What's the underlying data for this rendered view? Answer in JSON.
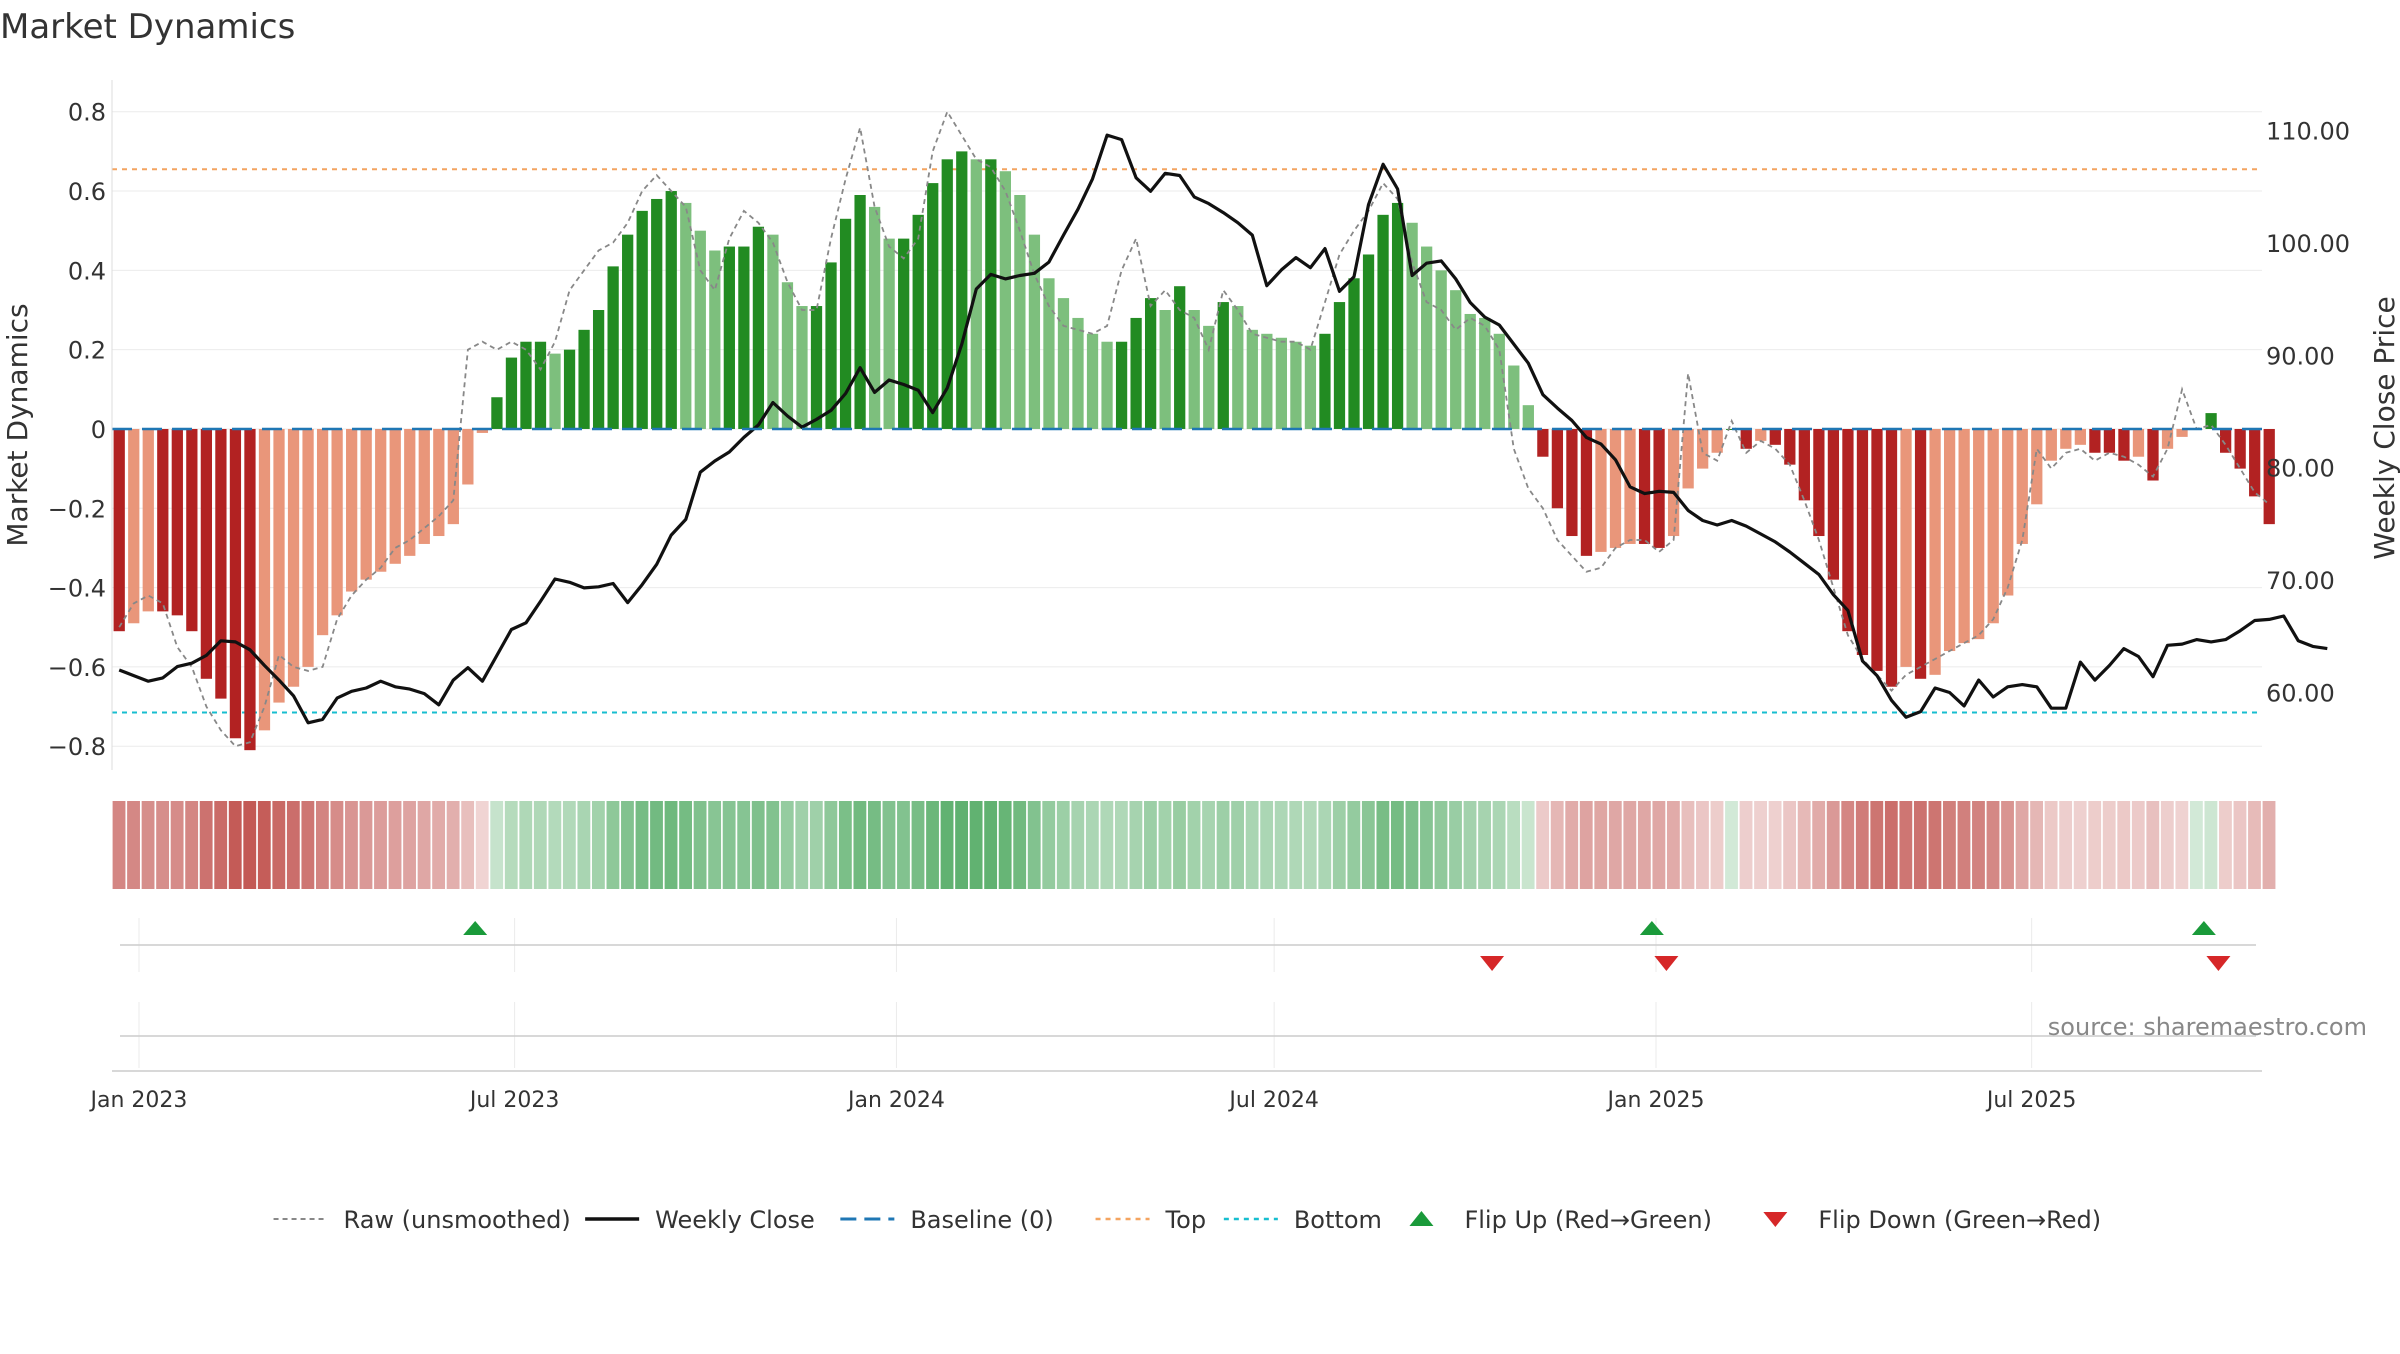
{
  "chart_data": {
    "type": "bar",
    "title": "Market Dynamics",
    "ylabel": "Market Dynamics",
    "y2label": "Weekly Close Price",
    "ylim": [
      -0.86,
      0.88
    ],
    "y2lim": [
      53.1,
      114.5
    ],
    "yticks": [
      "0.8",
      "0.6",
      "0.4",
      "0.2",
      "0",
      "−0.2",
      "−0.4",
      "−0.6",
      "−0.8"
    ],
    "ytick_values": [
      0.8,
      0.6,
      0.4,
      0.2,
      0,
      -0.2,
      -0.4,
      -0.6,
      -0.8
    ],
    "y2ticks": [
      "110.00",
      "100.00",
      "90.00",
      "80.00",
      "70.00",
      "60.00"
    ],
    "y2tick_values": [
      110,
      100,
      90,
      80,
      70,
      60
    ],
    "x_start": "2022-12-19",
    "x_end": "2025-10-20",
    "xticks": [
      {
        "date": "2023-01-01",
        "label": "Jan 2023"
      },
      {
        "date": "2023-07-01",
        "label": "Jul 2023"
      },
      {
        "date": "2024-01-01",
        "label": "Jan 2024"
      },
      {
        "date": "2024-07-01",
        "label": "Jul 2024"
      },
      {
        "date": "2025-01-01",
        "label": "Jan 2025"
      },
      {
        "date": "2025-07-01",
        "label": "Jul 2025"
      }
    ],
    "reference_lines": {
      "baseline": 0,
      "top": 0.655,
      "bottom": -0.715
    },
    "colors": {
      "strong_up": "#228b22",
      "weak_up": "#7dbf7d",
      "strong_down": "#b22222",
      "weak_down": "#e9967a",
      "raw": "#888888",
      "close": "#111111",
      "baseline": "#1f77b4",
      "top": "#f4a460",
      "bottom": "#17becf",
      "flip_up": "#1a9a3a",
      "flip_down": "#d62728"
    },
    "weeks": {
      "start": "2022-12-19",
      "step_days": 7,
      "smoothed": [
        -0.51,
        -0.49,
        -0.46,
        -0.46,
        -0.47,
        -0.51,
        -0.63,
        -0.68,
        -0.78,
        -0.81,
        -0.76,
        -0.69,
        -0.65,
        -0.6,
        -0.52,
        -0.47,
        -0.41,
        -0.38,
        -0.36,
        -0.34,
        -0.32,
        -0.29,
        -0.27,
        -0.24,
        -0.14,
        -0.01,
        0.08,
        0.18,
        0.22,
        0.22,
        0.19,
        0.2,
        0.25,
        0.3,
        0.41,
        0.49,
        0.55,
        0.58,
        0.6,
        0.57,
        0.5,
        0.45,
        0.46,
        0.46,
        0.51,
        0.49,
        0.37,
        0.31,
        0.31,
        0.42,
        0.53,
        0.59,
        0.56,
        0.48,
        0.48,
        0.54,
        0.62,
        0.68,
        0.7,
        0.68,
        0.68,
        0.65,
        0.59,
        0.49,
        0.38,
        0.33,
        0.28,
        0.24,
        0.22,
        0.22,
        0.28,
        0.33,
        0.3,
        0.36,
        0.3,
        0.26,
        0.32,
        0.31,
        0.25,
        0.24,
        0.23,
        0.22,
        0.21,
        0.24,
        0.32,
        0.38,
        0.44,
        0.54,
        0.57,
        0.52,
        0.46,
        0.4,
        0.35,
        0.29,
        0.28,
        0.24,
        0.16,
        0.06,
        -0.07,
        -0.2,
        -0.27,
        -0.32,
        -0.31,
        -0.3,
        -0.29,
        -0.29,
        -0.3,
        -0.27,
        -0.15,
        -0.1,
        -0.06,
        0,
        -0.05,
        -0.03,
        -0.04,
        -0.09,
        -0.18,
        -0.27,
        -0.38,
        -0.51,
        -0.57,
        -0.61,
        -0.65,
        -0.6,
        -0.63,
        -0.62,
        -0.56,
        -0.54,
        -0.53,
        -0.49,
        -0.42,
        -0.29,
        -0.19,
        -0.08,
        -0.05,
        -0.04,
        -0.06,
        -0.06,
        -0.08,
        -0.07,
        -0.13,
        -0.05,
        -0.02,
        0,
        0.04,
        -0.06,
        -0.1,
        -0.17,
        -0.24
      ],
      "close": [
        62,
        61.5,
        61,
        61.3,
        62.3,
        62.6,
        63.3,
        64.6,
        64.5,
        63.8,
        62.4,
        61.1,
        59.7,
        57.3,
        57.6,
        59.5,
        60.1,
        60.4,
        61,
        60.5,
        60.3,
        59.9,
        58.9,
        61.1,
        62.2,
        61,
        63.3,
        65.6,
        66.2,
        68.1,
        70.1,
        69.8,
        69.3,
        69.4,
        69.7,
        68,
        69.6,
        71.4,
        74,
        75.4,
        79.6,
        80.6,
        81.4,
        82.7,
        83.8,
        85.8,
        84.6,
        83.6,
        84.3,
        85.1,
        86.6,
        88.9,
        86.7,
        87.8,
        87.4,
        86.9,
        84.9,
        87.1,
        91,
        95.9,
        97.2,
        96.8,
        97.1,
        97.3,
        98.3,
        100.7,
        103,
        105.7,
        109.6,
        109.2,
        105.8,
        104.6,
        106.2,
        106,
        104.1,
        103.5,
        102.7,
        101.8,
        100.7,
        96.2,
        97.6,
        98.7,
        97.8,
        99.5,
        95.7,
        97,
        103.4,
        107,
        104.8,
        97.1,
        98.2,
        98.4,
        96.8,
        94.7,
        93.4,
        92.7,
        91,
        89.3,
        86.5,
        85.3,
        84.2,
        82.7,
        82.1,
        80.7,
        78.3,
        77.7,
        77.9,
        77.8,
        76.2,
        75.3,
        74.9,
        75.3,
        74.8,
        74.1,
        73.4,
        72.5,
        71.5,
        70.5,
        68.7,
        67.3,
        62.8,
        61.5,
        59.3,
        57.8,
        58.3,
        60.4,
        60,
        58.8,
        61.1,
        59.6,
        60.5,
        60.7,
        60.5,
        58.6,
        58.6,
        62.7,
        61.1,
        62.4,
        63.9,
        63.2,
        61.4,
        64.2,
        64.3,
        64.7,
        64.5,
        64.7,
        65.5,
        66.4,
        66.5,
        66.8,
        64.6,
        64.1,
        63.9
      ],
      "raw": [
        -0.5,
        -0.44,
        -0.42,
        -0.44,
        -0.55,
        -0.6,
        -0.7,
        -0.76,
        -0.8,
        -0.79,
        -0.7,
        -0.57,
        -0.6,
        -0.61,
        -0.6,
        -0.48,
        -0.42,
        -0.38,
        -0.35,
        -0.3,
        -0.28,
        -0.25,
        -0.22,
        -0.18,
        0.2,
        0.22,
        0.2,
        0.22,
        0.2,
        0.15,
        0.22,
        0.35,
        0.4,
        0.45,
        0.47,
        0.52,
        0.6,
        0.64,
        0.6,
        0.56,
        0.4,
        0.35,
        0.48,
        0.55,
        0.52,
        0.47,
        0.37,
        0.3,
        0.3,
        0.48,
        0.63,
        0.76,
        0.56,
        0.46,
        0.43,
        0.48,
        0.7,
        0.8,
        0.74,
        0.68,
        0.66,
        0.6,
        0.5,
        0.39,
        0.31,
        0.26,
        0.25,
        0.24,
        0.26,
        0.4,
        0.48,
        0.31,
        0.35,
        0.3,
        0.28,
        0.2,
        0.35,
        0.3,
        0.24,
        0.23,
        0.22,
        0.22,
        0.2,
        0.32,
        0.44,
        0.5,
        0.55,
        0.62,
        0.58,
        0.42,
        0.32,
        0.3,
        0.25,
        0.28,
        0.26,
        0.2,
        -0.05,
        -0.15,
        -0.2,
        -0.28,
        -0.32,
        -0.36,
        -0.35,
        -0.3,
        -0.28,
        -0.28,
        -0.31,
        -0.28,
        0.14,
        -0.06,
        -0.08,
        0.02,
        -0.06,
        -0.03,
        -0.05,
        -0.09,
        -0.18,
        -0.28,
        -0.4,
        -0.52,
        -0.58,
        -0.62,
        -0.66,
        -0.62,
        -0.6,
        -0.58,
        -0.56,
        -0.54,
        -0.52,
        -0.48,
        -0.4,
        -0.28,
        -0.05,
        -0.1,
        -0.06,
        -0.05,
        -0.08,
        -0.06,
        -0.07,
        -0.09,
        -0.12,
        -0.05,
        0.1,
        0.0,
        0.01,
        -0.04,
        -0.1,
        -0.16,
        -0.19
      ]
    },
    "flip_up": [
      "2023-06-12",
      "2024-12-30",
      "2025-09-22"
    ],
    "flip_down": [
      "2024-10-14",
      "2025-01-06",
      "2025-09-29"
    ],
    "legend": {
      "position": "bottom",
      "entries": [
        {
          "label": "Raw (unsmoothed)",
          "kind": "raw"
        },
        {
          "label": "Weekly Close",
          "kind": "close"
        },
        {
          "label": "Baseline (0)",
          "kind": "baseline"
        },
        {
          "label": "Top",
          "kind": "top"
        },
        {
          "label": "Bottom",
          "kind": "bottom"
        },
        {
          "label": "Flip Up (Red→Green)",
          "kind": "flip_up"
        },
        {
          "label": "Flip Down (Green→Red)",
          "kind": "flip_down"
        }
      ]
    },
    "source": "source: sharemaestro.com"
  }
}
